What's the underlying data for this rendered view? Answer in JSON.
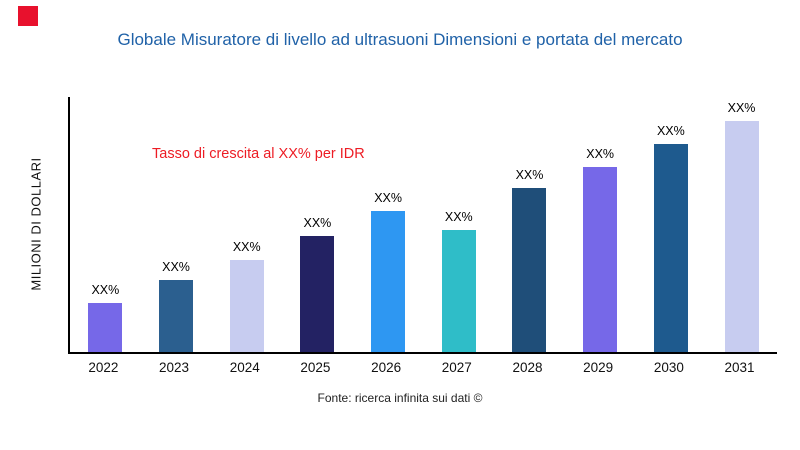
{
  "brand": {
    "color": "#e8112d"
  },
  "title": "Globale Misuratore di livello ad ultrasuoni Dimensioni e portata del mercato",
  "y_axis_label": "MILIONI DI DOLLARI",
  "annotation": "Tasso di crescita al XX% per IDR",
  "source": "Fonte: ricerca infinita sui dati ©",
  "chart_data": {
    "type": "bar",
    "title": "Globale Misuratore di livello ad ultrasuoni Dimensioni e portata del mercato",
    "xlabel": "",
    "ylabel": "MILIONI DI DOLLARI",
    "categories": [
      "2022",
      "2023",
      "2024",
      "2025",
      "2026",
      "2027",
      "2028",
      "2029",
      "2030",
      "2031"
    ],
    "values": [
      21,
      31,
      40,
      50,
      61,
      53,
      71,
      80,
      90,
      100
    ],
    "bar_labels": [
      "XX%",
      "XX%",
      "XX%",
      "XX%",
      "XX%",
      "XX%",
      "XX%",
      "XX%",
      "XX%",
      "XX%"
    ],
    "colors": [
      "#7668e8",
      "#2b5f8f",
      "#c7ccf0",
      "#232263",
      "#2e97f2",
      "#2fbdc8",
      "#1f4e79",
      "#7668e8",
      "#1e5a8e",
      "#c7ccf0"
    ],
    "annotation": "Tasso di crescita al XX% per IDR",
    "ylim": [
      0,
      110
    ],
    "grid": false,
    "legend": false,
    "units": "relative (labels shown as XX%)"
  }
}
